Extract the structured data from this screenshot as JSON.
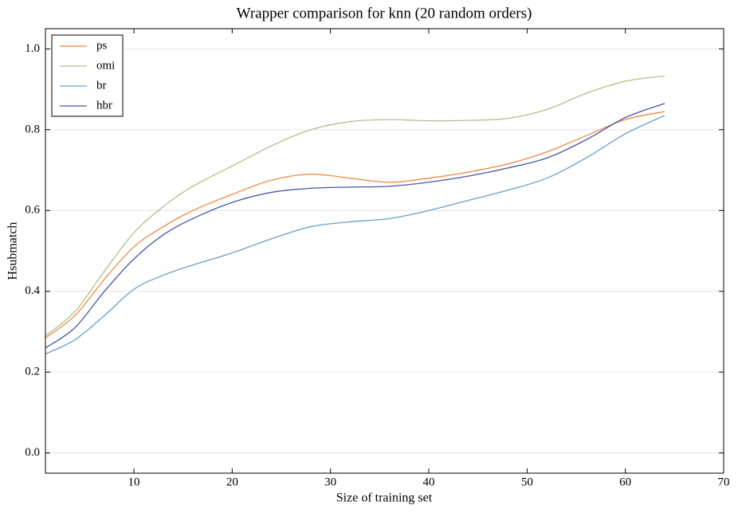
{
  "chart_data": {
    "type": "line",
    "title": "Wrapper comparison for knn (20 random orders)",
    "x_label": "Size of training set",
    "y_label": "Hsubmatch",
    "x": [
      1,
      4,
      7,
      10,
      13,
      16,
      20,
      24,
      28,
      32,
      36,
      40,
      44,
      48,
      52,
      56,
      60,
      64
    ],
    "series": [
      {
        "name": "ps",
        "color": "#ef8a3f",
        "values": [
          0.285,
          0.34,
          0.43,
          0.51,
          0.56,
          0.6,
          0.64,
          0.675,
          0.69,
          0.68,
          0.67,
          0.68,
          0.695,
          0.715,
          0.745,
          0.785,
          0.825,
          0.845
        ]
      },
      {
        "name": "omi",
        "color": "#b3c08c",
        "values": [
          0.29,
          0.35,
          0.45,
          0.545,
          0.61,
          0.66,
          0.71,
          0.76,
          0.8,
          0.82,
          0.825,
          0.822,
          0.823,
          0.828,
          0.85,
          0.89,
          0.92,
          0.933
        ]
      },
      {
        "name": "br",
        "color": "#6a9fcb",
        "values": [
          0.245,
          0.28,
          0.34,
          0.405,
          0.44,
          0.465,
          0.495,
          0.53,
          0.56,
          0.572,
          0.58,
          0.6,
          0.625,
          0.65,
          0.68,
          0.73,
          0.79,
          0.835
        ]
      },
      {
        "name": "hbr",
        "color": "#4559a8",
        "values": [
          0.26,
          0.31,
          0.4,
          0.48,
          0.54,
          0.58,
          0.62,
          0.645,
          0.655,
          0.658,
          0.66,
          0.67,
          0.685,
          0.705,
          0.73,
          0.775,
          0.83,
          0.865
        ]
      }
    ],
    "xlim": [
      1,
      70
    ],
    "xticks": [
      10,
      20,
      30,
      40,
      50,
      60,
      70
    ],
    "ylim": [
      -0.05,
      1.05
    ],
    "yticks": [
      {
        "value": 0,
        "label": "0.0"
      },
      0.2,
      0.4,
      0.6,
      0.8,
      {
        "value": 1,
        "label": "1.0"
      }
    ],
    "grid": true,
    "legend": "upper left"
  }
}
